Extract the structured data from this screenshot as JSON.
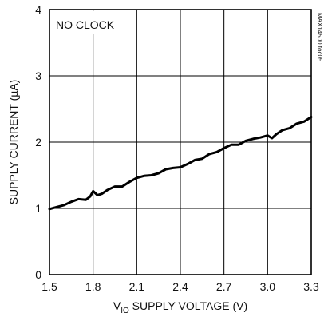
{
  "chart_data": {
    "type": "line",
    "title": "",
    "annotation": "NO CLOCK",
    "figure_code": "MAX14500 toc05",
    "xlabel_prefix": "V",
    "xlabel_subscript": "IO",
    "xlabel_suffix": " SUPPLY VOLTAGE (V)",
    "ylabel": "SUPPLY CURRENT (µA)",
    "xlim": [
      1.5,
      3.3
    ],
    "ylim": [
      0,
      4
    ],
    "x_ticks": [
      "1.5",
      "1.8",
      "2.1",
      "2.4",
      "2.7",
      "3.0",
      "3.3"
    ],
    "y_ticks": [
      "0",
      "1",
      "2",
      "3",
      "4"
    ],
    "grid": true,
    "series": [
      {
        "color": "#000000",
        "x": [
          1.5,
          1.55,
          1.6,
          1.65,
          1.7,
          1.75,
          1.78,
          1.8,
          1.83,
          1.86,
          1.9,
          1.95,
          2.0,
          2.05,
          2.1,
          2.15,
          2.2,
          2.25,
          2.3,
          2.35,
          2.4,
          2.45,
          2.5,
          2.55,
          2.6,
          2.65,
          2.7,
          2.75,
          2.8,
          2.85,
          2.9,
          2.95,
          3.0,
          3.03,
          3.06,
          3.1,
          3.15,
          3.2,
          3.25,
          3.3
        ],
        "y": [
          0.99,
          1.02,
          1.05,
          1.1,
          1.14,
          1.13,
          1.18,
          1.26,
          1.2,
          1.22,
          1.28,
          1.33,
          1.33,
          1.4,
          1.46,
          1.49,
          1.5,
          1.53,
          1.59,
          1.61,
          1.62,
          1.67,
          1.73,
          1.75,
          1.82,
          1.85,
          1.91,
          1.96,
          1.96,
          2.02,
          2.05,
          2.07,
          2.1,
          2.06,
          2.12,
          2.18,
          2.21,
          2.28,
          2.31,
          2.38
        ]
      }
    ]
  }
}
